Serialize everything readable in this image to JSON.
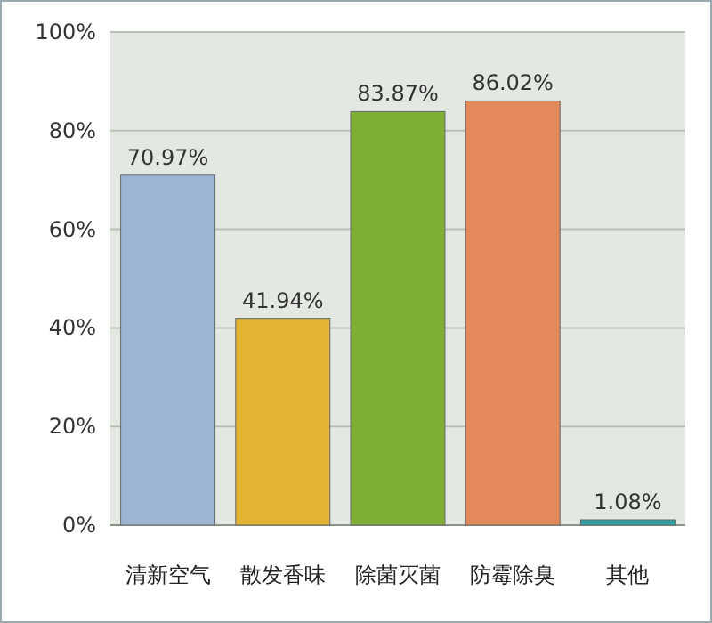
{
  "chart_data": {
    "type": "bar",
    "categories": [
      "清新空气",
      "散发香味",
      "除菌灭菌",
      "防霉除臭",
      "其他"
    ],
    "values": [
      70.97,
      41.94,
      83.87,
      86.02,
      1.08
    ],
    "colors": [
      "#9db5d3",
      "#e2b432",
      "#7fae35",
      "#e38a5a",
      "#2fa3a6"
    ],
    "value_labels": [
      "70.97%",
      "41.94%",
      "83.87%",
      "86.02%",
      "1.08%"
    ],
    "ylim": [
      0,
      100
    ],
    "yticks": [
      {
        "value": 0,
        "label": "0%"
      },
      {
        "value": 20,
        "label": "20%"
      },
      {
        "value": 40,
        "label": "40%"
      },
      {
        "value": 60,
        "label": "60%"
      },
      {
        "value": 80,
        "label": "80%"
      },
      {
        "value": 100,
        "label": "100%"
      }
    ],
    "grid": "y"
  }
}
